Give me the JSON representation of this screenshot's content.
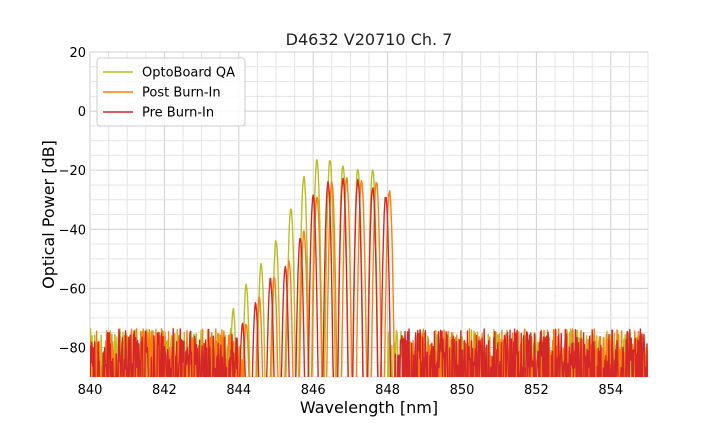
{
  "chart_data": {
    "type": "line",
    "title": "D4632 V20710 Ch. 7",
    "xlabel": "Wavelength [nm]",
    "ylabel": "Optical Power [dB]",
    "xlim": [
      840,
      855
    ],
    "ylim": [
      -90,
      20
    ],
    "xticks": [
      840,
      842,
      844,
      846,
      848,
      850,
      852,
      854
    ],
    "yticks": [
      20,
      0,
      -20,
      -40,
      -60,
      -80
    ],
    "major_grid": true,
    "minor_grid": true,
    "legend_position": "top-left",
    "noise_floor_db": -80,
    "series": [
      {
        "name": "OptoBoard QA",
        "color": "#bcbd22",
        "band": [
          843.8,
          848.0
        ],
        "peaks": [
          [
            843.85,
            -67
          ],
          [
            844.2,
            -59
          ],
          [
            844.6,
            -52
          ],
          [
            845.0,
            -44
          ],
          [
            845.4,
            -33
          ],
          [
            845.75,
            -22
          ],
          [
            846.1,
            -16.5
          ],
          [
            846.45,
            -16.5
          ],
          [
            846.8,
            -18
          ],
          [
            847.2,
            -19.5
          ],
          [
            847.6,
            -19.5
          ]
        ]
      },
      {
        "name": "Post Burn-In",
        "color": "#ff7f0e",
        "band": [
          844.1,
          848.4
        ],
        "peaks": [
          [
            844.2,
            -72
          ],
          [
            844.55,
            -63
          ],
          [
            844.95,
            -56
          ],
          [
            845.35,
            -51
          ],
          [
            845.75,
            -41
          ],
          [
            846.1,
            -29
          ],
          [
            846.5,
            -24
          ],
          [
            846.9,
            -23
          ],
          [
            847.3,
            -23.5
          ],
          [
            847.7,
            -24
          ],
          [
            848.05,
            -27
          ]
        ]
      },
      {
        "name": "Pre Burn-In",
        "color": "#d62728",
        "band": [
          844.0,
          848.2
        ],
        "peaks": [
          [
            844.1,
            -72
          ],
          [
            844.45,
            -65
          ],
          [
            844.85,
            -57
          ],
          [
            845.25,
            -53
          ],
          [
            845.65,
            -43
          ],
          [
            846.0,
            -29
          ],
          [
            846.4,
            -24
          ],
          [
            846.8,
            -23
          ],
          [
            847.2,
            -23.5
          ],
          [
            847.6,
            -26
          ],
          [
            847.95,
            -29
          ]
        ]
      }
    ]
  }
}
